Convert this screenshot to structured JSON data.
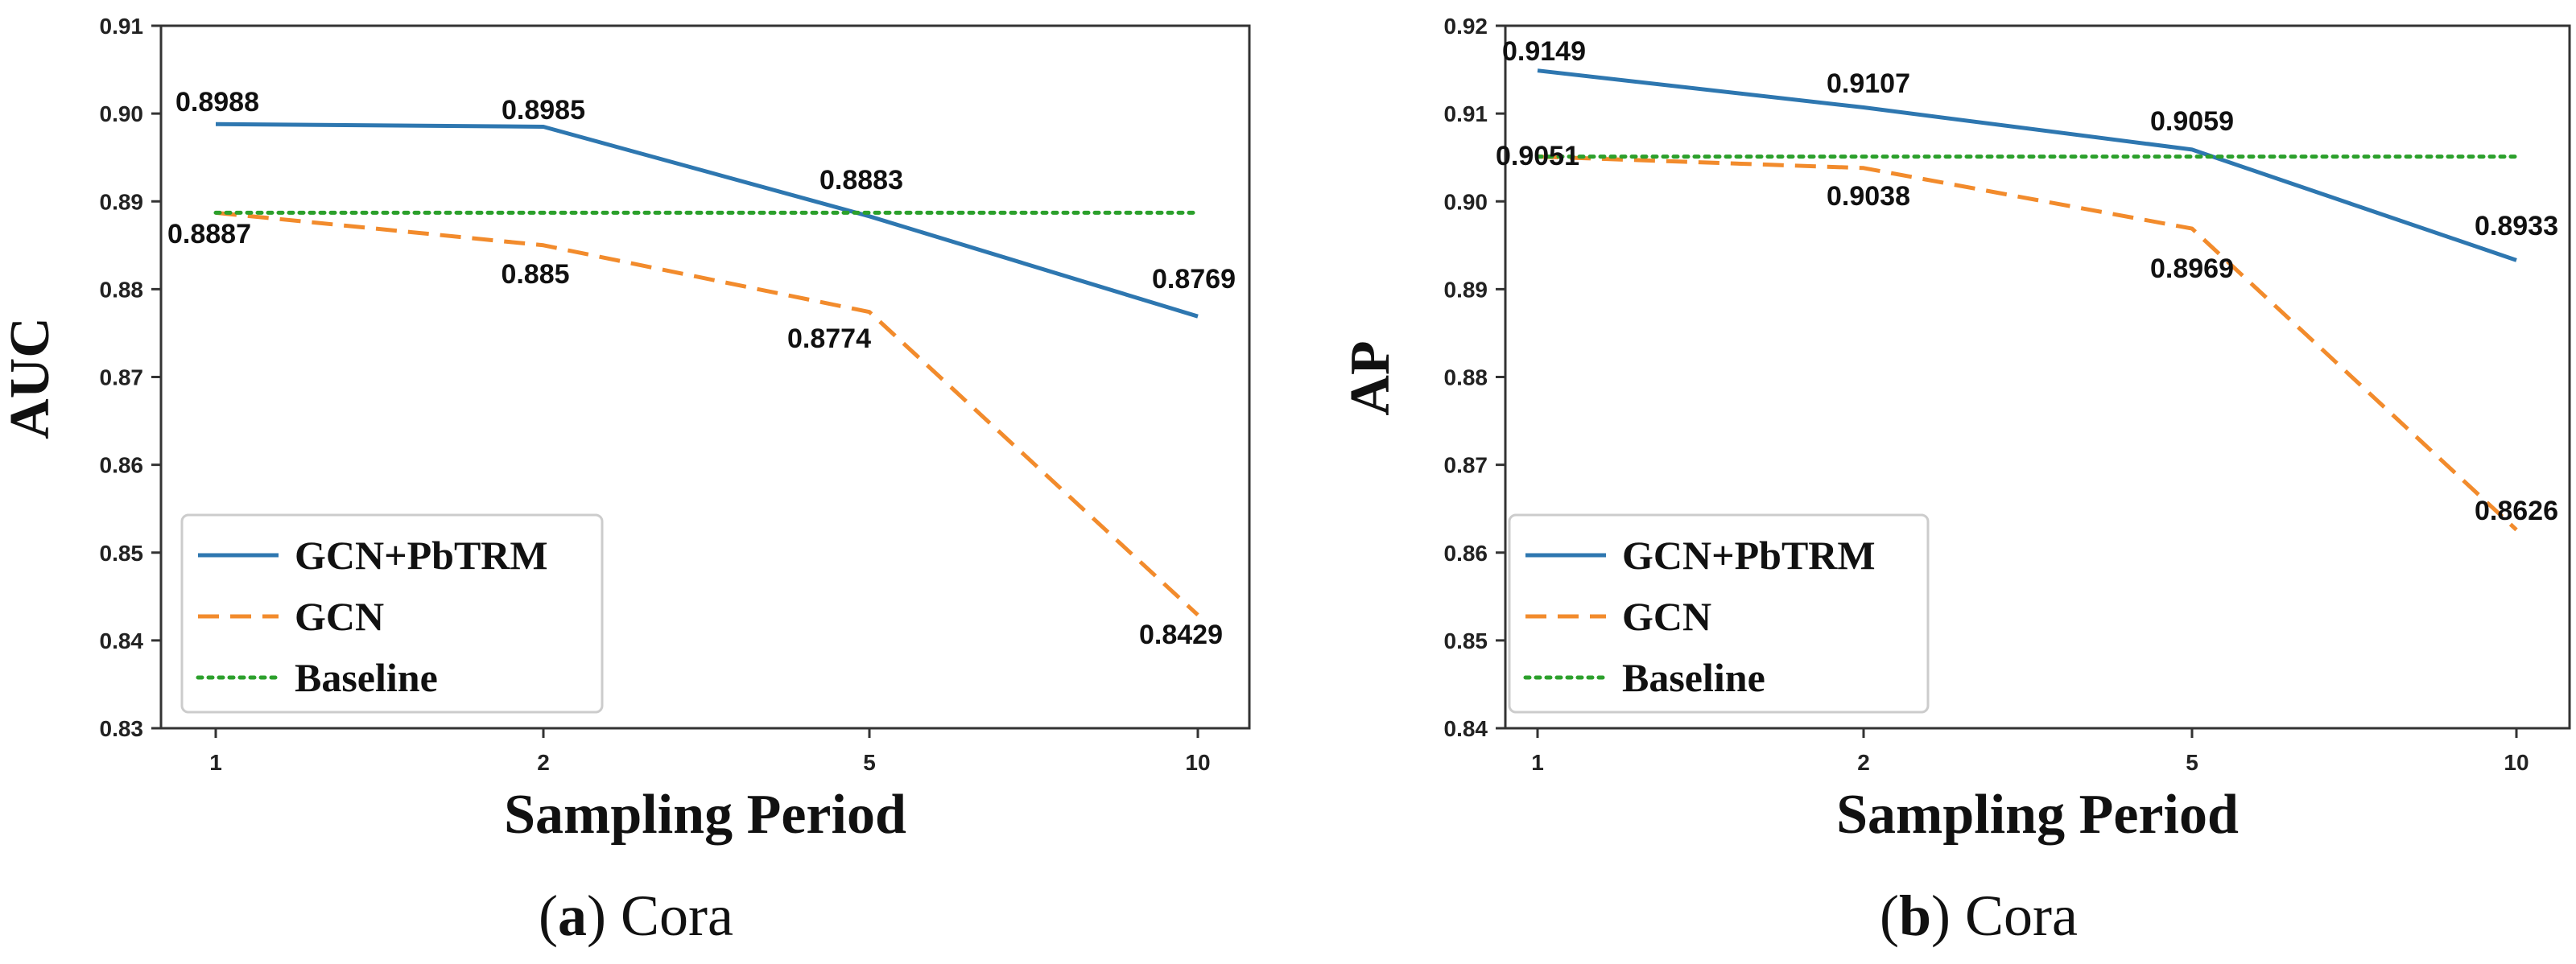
{
  "chart_data": [
    {
      "type": "line",
      "caption": {
        "letter": "a",
        "text": "Cora"
      },
      "xlabel": "Sampling Period",
      "ylabel": "AUC",
      "categories": [
        "1",
        "2",
        "5",
        "10"
      ],
      "ylim": [
        0.83,
        0.91
      ],
      "yticks": [
        "0.83",
        "0.84",
        "0.85",
        "0.86",
        "0.87",
        "0.88",
        "0.89",
        "0.90",
        "0.91"
      ],
      "series": [
        {
          "name": "GCN+PbTRM",
          "style": "solid",
          "color": "#2e77b0",
          "values": [
            0.8988,
            0.8985,
            0.8883,
            0.8769
          ],
          "labels": [
            "0.8988",
            "0.8985",
            "0.8883",
            "0.8769"
          ]
        },
        {
          "name": "GCN",
          "style": "dashed",
          "color": "#f28b2c",
          "values": [
            0.8887,
            0.885,
            0.8774,
            0.8429
          ],
          "labels": [
            "0.8887",
            "0.885",
            "0.8774",
            "0.8429"
          ]
        },
        {
          "name": "Baseline",
          "style": "dotted",
          "color": "#2ca02c",
          "values": [
            0.8887,
            0.8887,
            0.8887,
            0.8887
          ],
          "labels": []
        }
      ],
      "legend": "lower-left"
    },
    {
      "type": "line",
      "caption": {
        "letter": "b",
        "text": "Cora"
      },
      "xlabel": "Sampling Period",
      "ylabel": "AP",
      "categories": [
        "1",
        "2",
        "5",
        "10"
      ],
      "ylim": [
        0.84,
        0.92
      ],
      "yticks": [
        "0.84",
        "0.85",
        "0.86",
        "0.87",
        "0.88",
        "0.89",
        "0.90",
        "0.91",
        "0.92"
      ],
      "series": [
        {
          "name": "GCN+PbTRM",
          "style": "solid",
          "color": "#2e77b0",
          "values": [
            0.9149,
            0.9107,
            0.9059,
            0.8933
          ],
          "labels": [
            "0.9149",
            "0.9107",
            "0.9059",
            "0.8933"
          ]
        },
        {
          "name": "GCN",
          "style": "dashed",
          "color": "#f28b2c",
          "values": [
            0.9051,
            0.9038,
            0.8969,
            0.8626
          ],
          "labels": [
            "0.9051",
            "0.9038",
            "0.8969",
            "0.8626"
          ]
        },
        {
          "name": "Baseline",
          "style": "dotted",
          "color": "#2ca02c",
          "values": [
            0.9051,
            0.9051,
            0.9051,
            0.9051
          ],
          "labels": []
        }
      ],
      "legend": "lower-left"
    }
  ]
}
